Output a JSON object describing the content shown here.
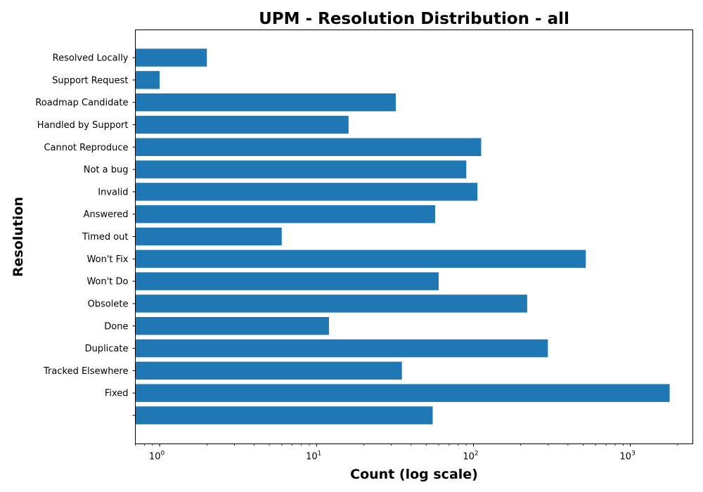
{
  "chart_data": {
    "type": "bar",
    "orientation": "horizontal",
    "title": "UPM - Resolution Distribution - all",
    "xlabel": "Count (log scale)",
    "ylabel": "Resolution",
    "x_scale": "log",
    "xlim": [
      0.7,
      2500
    ],
    "x_ticks": [
      {
        "value": 1,
        "base": "10",
        "exp": "0"
      },
      {
        "value": 10,
        "base": "10",
        "exp": "1"
      },
      {
        "value": 100,
        "base": "10",
        "exp": "2"
      },
      {
        "value": 1000,
        "base": "10",
        "exp": "3"
      }
    ],
    "categories": [
      "Resolved Locally",
      "Support Request",
      "Roadmap Candidate",
      "Handled by Support",
      "Cannot Reproduce",
      "Not a bug",
      "Invalid",
      "Answered",
      "Timed out",
      "Won't Fix",
      "Won't Do",
      "Obsolete",
      "Done",
      "Duplicate",
      "Tracked Elsewhere",
      "Fixed",
      ""
    ],
    "values": [
      2,
      1,
      32,
      16,
      112,
      90,
      106,
      57,
      6,
      520,
      60,
      220,
      12,
      298,
      35,
      1780,
      55
    ],
    "bar_color": "#1f77b4",
    "grid": false
  }
}
